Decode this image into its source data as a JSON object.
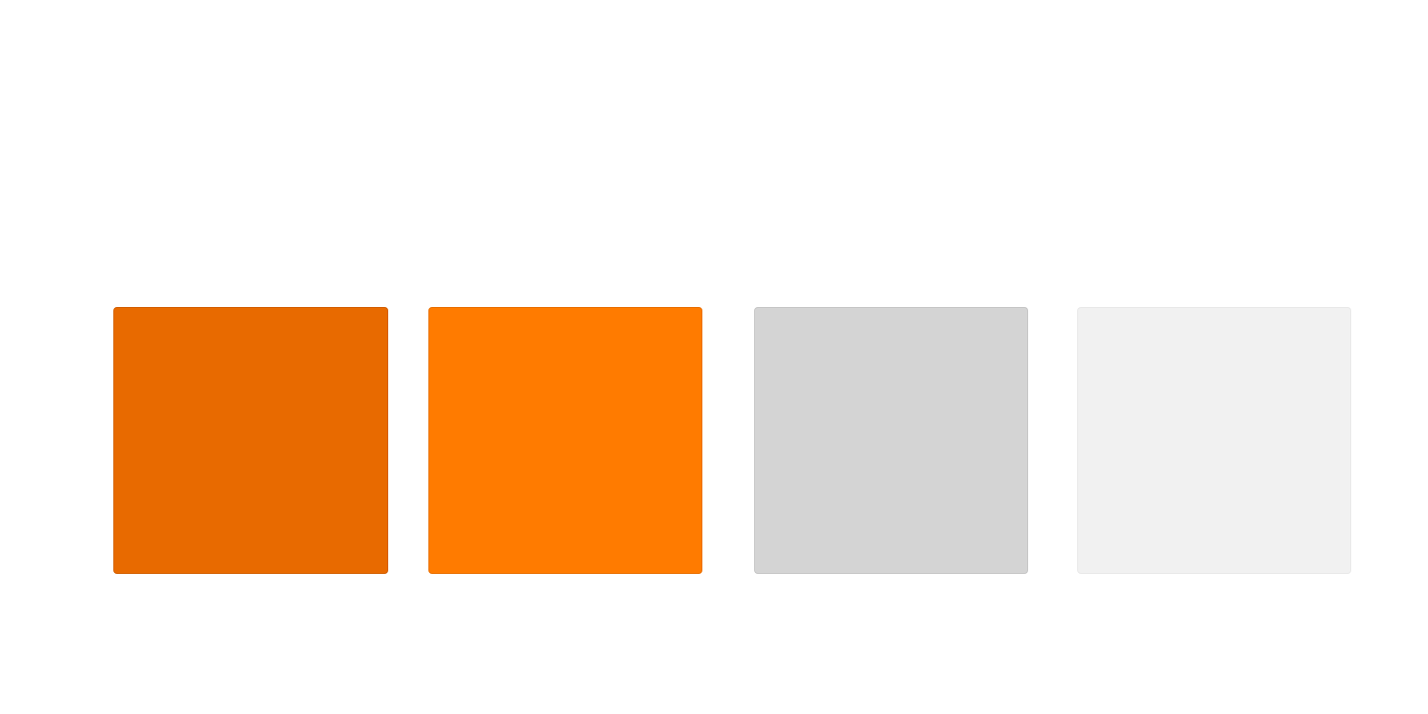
{
  "swatches": [
    {
      "id": "dark-orange",
      "color": "#e86a00",
      "border": "#d25f00"
    },
    {
      "id": "orange",
      "color": "#ff7b00",
      "border": "#e86f00"
    },
    {
      "id": "light-gray",
      "color": "#d4d4d4",
      "border": "#c6c6c6"
    },
    {
      "id": "lightest-gray",
      "color": "#f1f1f1",
      "border": "#e8e8e8"
    }
  ]
}
